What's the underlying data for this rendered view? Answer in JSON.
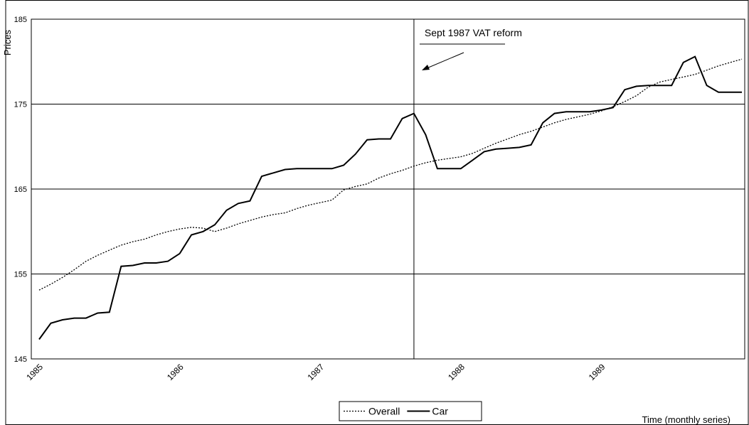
{
  "chart_data": {
    "type": "line",
    "ylabel": "Prices",
    "xlabel": "Time (monthly series)",
    "categories": [
      "1985",
      null,
      null,
      null,
      null,
      null,
      null,
      null,
      null,
      null,
      null,
      null,
      "1986",
      null,
      null,
      null,
      null,
      null,
      null,
      null,
      null,
      null,
      null,
      null,
      "1987",
      null,
      null,
      null,
      null,
      null,
      null,
      null,
      null,
      null,
      null,
      null,
      "1988",
      null,
      null,
      null,
      null,
      null,
      null,
      null,
      null,
      null,
      null,
      null,
      "1989",
      null,
      null,
      null,
      null,
      null,
      null,
      null,
      null,
      null,
      null,
      null,
      null
    ],
    "series": [
      {
        "name": "Overall",
        "color": "#000000",
        "line_style": "dotted",
        "values": [
          153.1,
          153.8,
          154.6,
          155.5,
          156.5,
          157.2,
          157.8,
          158.4,
          158.8,
          159.1,
          159.6,
          160.0,
          160.3,
          160.5,
          160.4,
          160.0,
          160.4,
          160.9,
          161.3,
          161.7,
          162.0,
          162.2,
          162.7,
          163.1,
          163.4,
          163.7,
          164.9,
          165.3,
          165.6,
          166.3,
          166.8,
          167.2,
          167.7,
          168.1,
          168.4,
          168.6,
          168.8,
          169.2,
          169.8,
          170.4,
          170.9,
          171.4,
          171.8,
          172.3,
          172.8,
          173.2,
          173.5,
          173.8,
          174.2,
          174.7,
          175.3,
          176.0,
          177.0,
          177.6,
          177.9,
          178.2,
          178.5,
          179.0,
          179.5,
          179.9,
          180.3
        ]
      },
      {
        "name": "Car",
        "color": "#000000",
        "line_style": "solid",
        "values": [
          147.3,
          149.2,
          149.6,
          149.8,
          149.8,
          150.4,
          150.5,
          155.9,
          156.0,
          156.3,
          156.3,
          156.5,
          157.4,
          159.6,
          160.0,
          160.8,
          162.5,
          163.3,
          163.6,
          166.5,
          166.9,
          167.3,
          167.4,
          167.4,
          167.4,
          167.4,
          167.8,
          169.1,
          170.8,
          170.9,
          170.9,
          173.3,
          173.9,
          171.4,
          167.4,
          167.4,
          167.4,
          168.4,
          169.4,
          169.7,
          169.8,
          169.9,
          170.2,
          172.8,
          173.9,
          174.1,
          174.1,
          174.1,
          174.3,
          174.6,
          176.7,
          177.1,
          177.2,
          177.2,
          177.2,
          179.9,
          180.6,
          177.2,
          176.4,
          176.4,
          176.4
        ]
      }
    ],
    "ylim": [
      145,
      185
    ],
    "yticks": [
      145,
      155,
      165,
      175,
      185
    ],
    "grid": true,
    "legend": "bottom",
    "annotation": {
      "text": "Sept 1987 VAT reform",
      "category_index": 32
    }
  }
}
